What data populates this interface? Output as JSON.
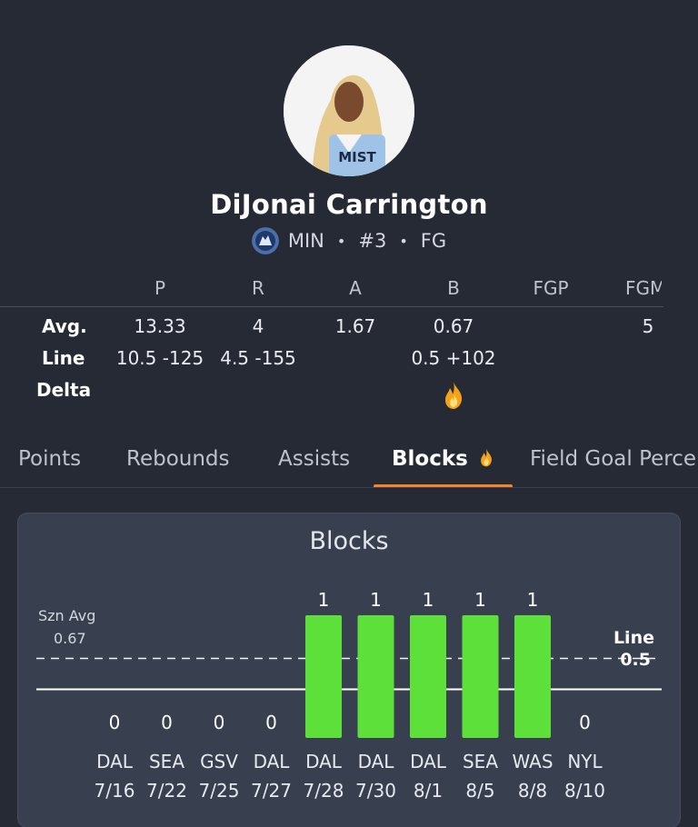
{
  "player": {
    "name": "DiJonai Carrington",
    "team": "MIN",
    "number": "#3",
    "position": "FG",
    "jersey_text": "MIST",
    "separator": "•"
  },
  "stats_table": {
    "headers": [
      "P",
      "R",
      "A",
      "B",
      "FGP",
      "FGM"
    ],
    "rows": [
      {
        "label": "Avg.",
        "values": [
          "13.33",
          "4",
          "1.67",
          "0.67",
          "",
          "5"
        ]
      },
      {
        "label": "Line",
        "values": [
          "10.5 -125",
          "4.5 -155",
          "",
          "0.5 +102",
          "",
          ""
        ]
      },
      {
        "label": "Delta",
        "values": [
          "",
          "",
          "",
          "fire-icon",
          "",
          ""
        ]
      }
    ]
  },
  "tabs": [
    {
      "label": "Points",
      "active": false
    },
    {
      "label": "Rebounds",
      "active": false
    },
    {
      "label": "Assists",
      "active": false
    },
    {
      "label": "Blocks",
      "active": true,
      "icon": "fire-icon"
    },
    {
      "label": "Field Goal Percentage",
      "active": false
    }
  ],
  "colors": {
    "background": "#262a35",
    "card": "#384050",
    "bar": "#5ee03b",
    "accent": "#f3852f",
    "fire": "#f5a21b"
  },
  "chart_data": {
    "type": "bar",
    "title": "Blocks",
    "categories": [
      "DAL 7/16",
      "SEA 7/22",
      "GSV 7/25",
      "DAL 7/27",
      "DAL 7/28",
      "DAL 7/30",
      "DAL 8/1",
      "SEA 8/5",
      "WAS 8/8",
      "NYL 8/10"
    ],
    "opponents": [
      "DAL",
      "SEA",
      "GSV",
      "DAL",
      "DAL",
      "DAL",
      "DAL",
      "SEA",
      "WAS",
      "NYL"
    ],
    "dates": [
      "7/16",
      "7/22",
      "7/25",
      "7/27",
      "7/28",
      "7/30",
      "8/1",
      "8/5",
      "8/8",
      "8/10"
    ],
    "values": [
      0,
      0,
      0,
      0,
      1,
      1,
      1,
      1,
      1,
      0
    ],
    "season_avg": 0.67,
    "season_avg_label": "Szn Avg",
    "line": 0.5,
    "line_label": "Line",
    "ylim": [
      0,
      1.15
    ]
  }
}
